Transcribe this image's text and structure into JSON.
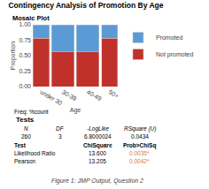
{
  "chart_data": {
    "type": "bar",
    "title": "Contingency Analysis of Promotion By Age",
    "subtitle": "Mosaic Plot",
    "caption": "Figure 1: JMP Output, Question 2",
    "xlabel": "Age",
    "ylabel": "Proportion",
    "categories": [
      "under 30",
      "30-39",
      "40-49",
      "50+"
    ],
    "widths": [
      0.18,
      0.25,
      0.25,
      0.18
    ],
    "stacked": true,
    "series": [
      {
        "name": "Not promoted",
        "color": "#C0312B",
        "values": [
          0.78,
          0.56,
          0.56,
          0.78
        ]
      },
      {
        "name": "Promoted",
        "color": "#5B9BD5",
        "values": [
          0.22,
          0.44,
          0.44,
          0.22
        ]
      }
    ],
    "ylim": [
      0,
      1
    ],
    "yticks": [
      {
        "value": 0,
        "label": "0.00"
      },
      {
        "value": 0.25,
        "label": "0.25"
      },
      {
        "value": 0.5,
        "label": "0.50"
      },
      {
        "value": 0.75,
        "label": "0.75"
      },
      {
        "value": 1,
        "label": "1.00"
      }
    ],
    "grid": false,
    "legend": "right",
    "table": {
      "label": "Freq: %count",
      "title": "Tests",
      "columns": [
        "N",
        "DF",
        "-LogLike",
        "RSquare (U)"
      ],
      "row": [
        "260",
        "3",
        "6.8000024",
        "0.0434"
      ],
      "test_columns": [
        "Test",
        "ChiSquare",
        "Prob>ChiSq"
      ],
      "test_rows": [
        [
          "Likelihood Ratio",
          "13.600",
          "0.0035*"
        ],
        [
          "Pearson",
          "13.205",
          "0.0042*"
        ]
      ],
      "color": "#E87722"
    }
  }
}
